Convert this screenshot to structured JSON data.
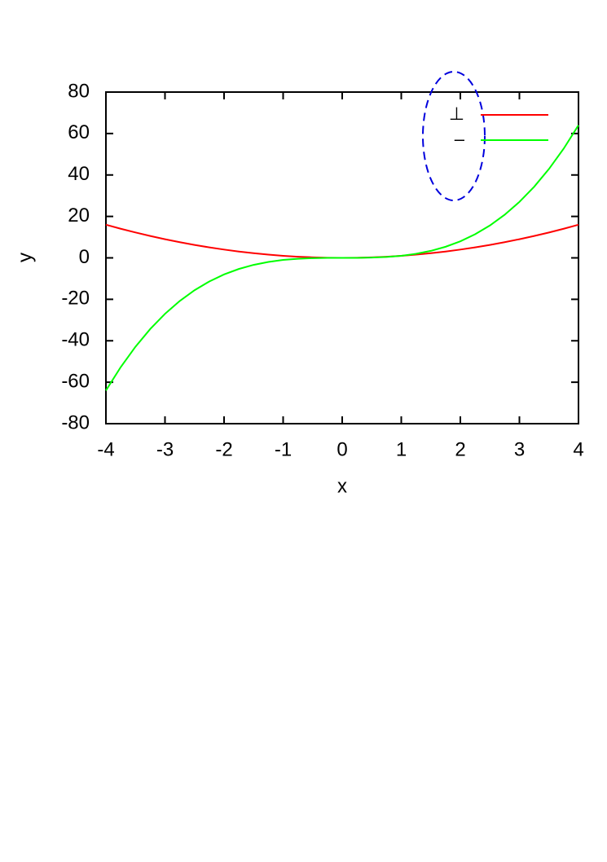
{
  "chart_data": {
    "type": "line",
    "x_label": "x",
    "y_label": "y",
    "x": [
      -4,
      -3.75,
      -3.5,
      -3.25,
      -3,
      -2.75,
      -2.5,
      -2.25,
      -2,
      -1.75,
      -1.5,
      -1.25,
      -1,
      -0.75,
      -0.5,
      -0.25,
      0,
      0.25,
      0.5,
      0.75,
      1,
      1.25,
      1.5,
      1.75,
      2,
      2.25,
      2.5,
      2.75,
      3,
      3.25,
      3.5,
      3.75,
      4
    ],
    "series": [
      {
        "name": "⊥",
        "color": "#ff0000",
        "values": [
          16,
          14.0625,
          12.25,
          10.5625,
          9,
          7.5625,
          6.25,
          5.0625,
          4,
          3.0625,
          2.25,
          1.5625,
          1,
          0.5625,
          0.25,
          0.0625,
          0,
          0.0625,
          0.25,
          0.5625,
          1,
          1.5625,
          2.25,
          3.0625,
          4,
          5.0625,
          6.25,
          7.5625,
          9,
          10.5625,
          12.25,
          14.0625,
          16
        ]
      },
      {
        "name": "–",
        "color": "#00ff00",
        "values": [
          -64,
          -52.734375,
          -42.875,
          -34.328125,
          -27,
          -20.796875,
          -15.625,
          -11.390625,
          -8,
          -5.359375,
          -3.375,
          -1.953125,
          -1,
          -0.421875,
          -0.125,
          -0.015625,
          0,
          0.015625,
          0.125,
          0.421875,
          1,
          1.953125,
          3.375,
          5.359375,
          8,
          11.390625,
          15.625,
          20.796875,
          27,
          34.328125,
          42.875,
          52.734375,
          64
        ]
      }
    ],
    "xlim": [
      -4,
      4
    ],
    "xticks": [
      -4,
      -3,
      -2,
      -1,
      0,
      1,
      2,
      3,
      4
    ],
    "ylim": [
      -80,
      80
    ],
    "yticks": [
      -80,
      -60,
      -40,
      -20,
      0,
      20,
      40,
      60,
      80
    ],
    "grid": false,
    "legend": "top-right"
  }
}
